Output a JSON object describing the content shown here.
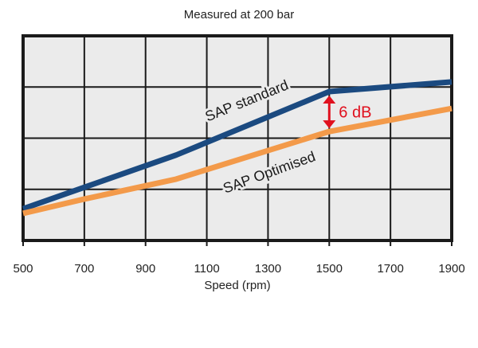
{
  "chart_data": {
    "type": "line",
    "title": "Measured at 200 bar",
    "xlabel": "Speed (rpm)",
    "ylabel": "",
    "xlim": [
      500,
      1900
    ],
    "ylim": [
      0,
      4
    ],
    "xticks": [
      500,
      700,
      900,
      1100,
      1300,
      1500,
      1700,
      1900
    ],
    "grid": true,
    "series": [
      {
        "name": "SAP standard",
        "color": "#1b4a80",
        "x": [
          500,
          700,
          1000,
          1500,
          1900
        ],
        "y": [
          0.62,
          1.04,
          1.67,
          2.91,
          3.1
        ]
      },
      {
        "name": "SAP Optimised",
        "color": "#f39a4a",
        "x": [
          500,
          700,
          1000,
          1500,
          1900
        ],
        "y": [
          0.53,
          0.81,
          1.2,
          2.13,
          2.58
        ]
      }
    ],
    "annotation": {
      "text": "6 dB",
      "x": 1500,
      "color": "#e0101e"
    },
    "plot_background": "#ebebeb"
  }
}
